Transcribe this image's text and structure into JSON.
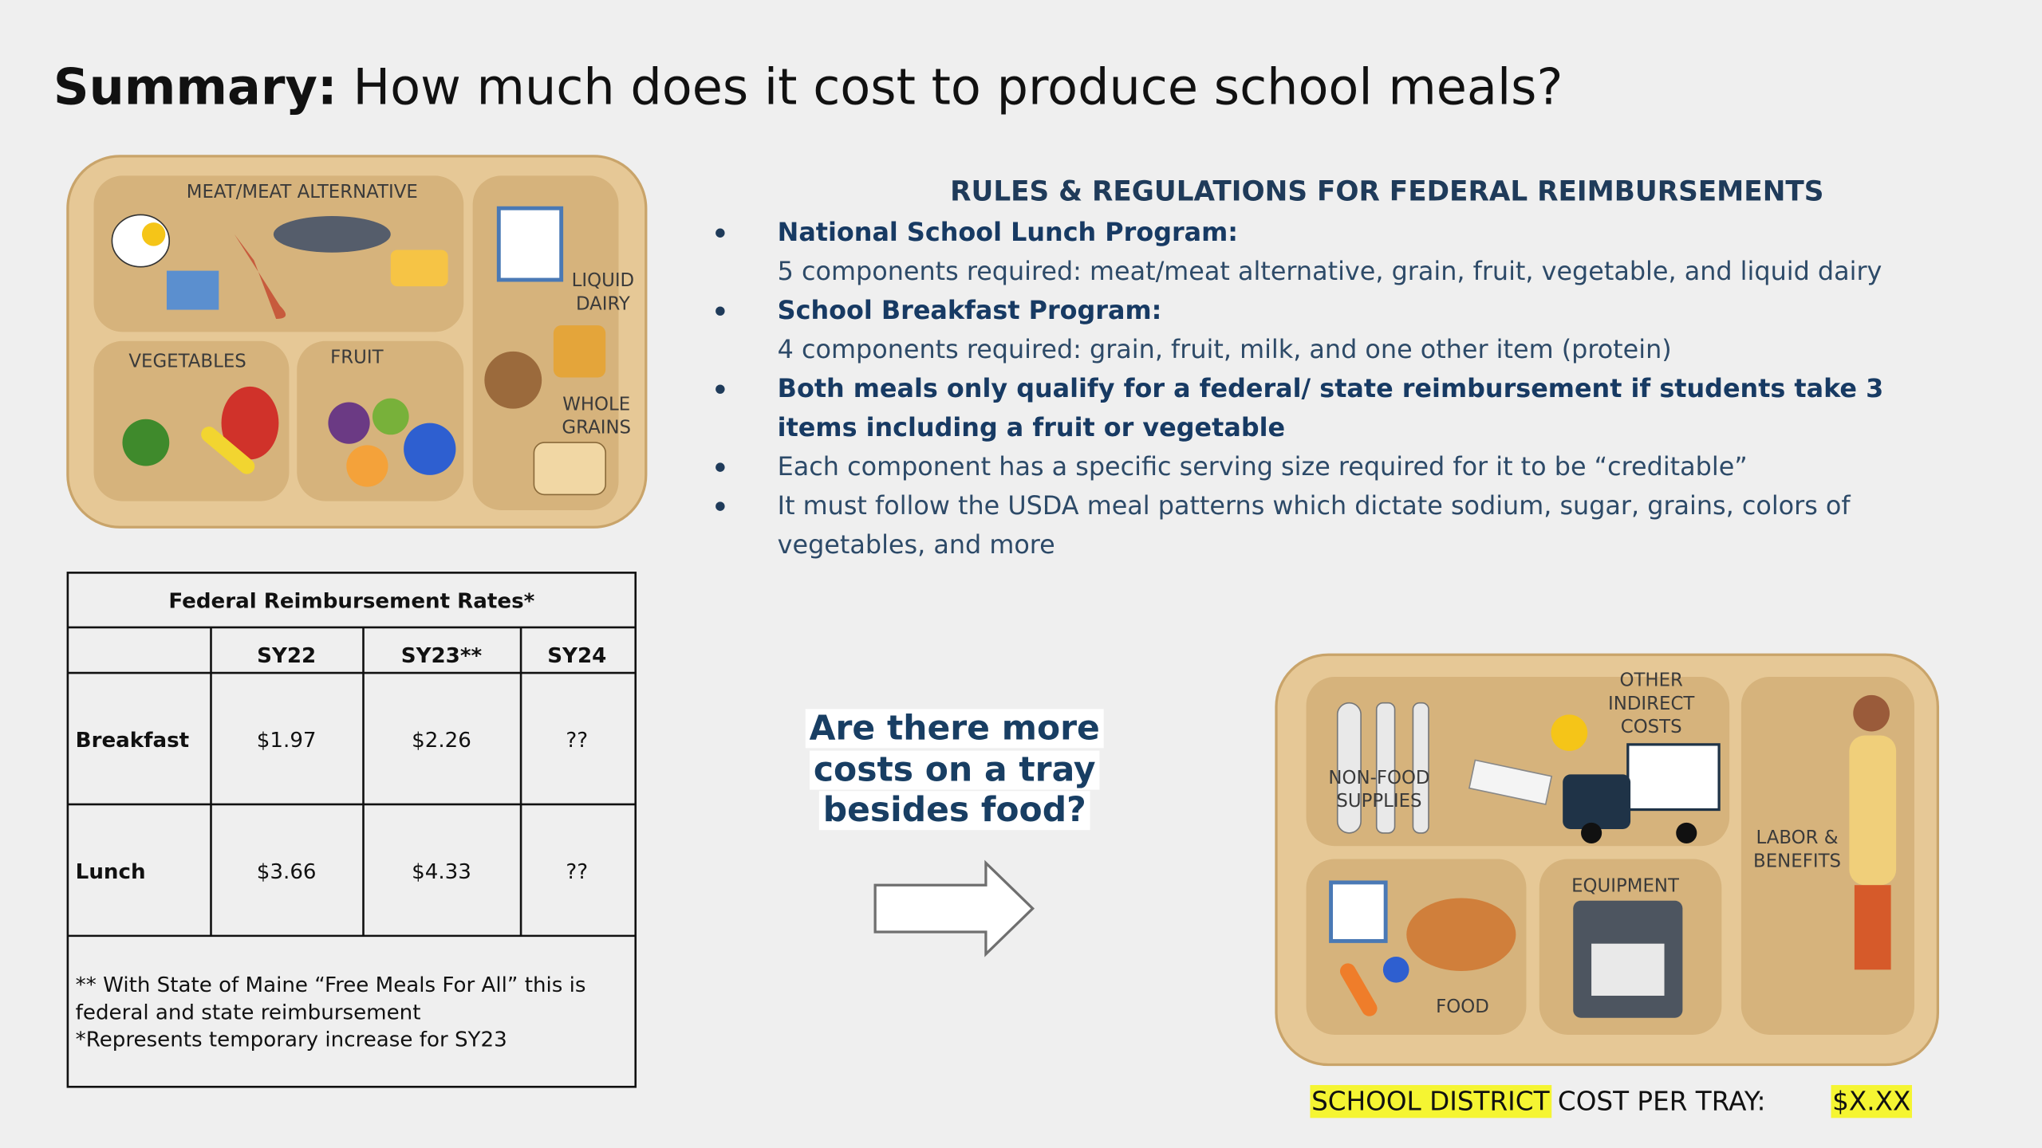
{
  "header": {
    "title_bold": "Summary:",
    "title_rest": " How much does it cost to produce school meals?"
  },
  "food_tray": {
    "meat": "MEAT/MEAT ALTERNATIVE",
    "liquid_dairy": [
      "LIQUID",
      "DAIRY"
    ],
    "vegetables": "VEGETABLES",
    "fruit": "FRUIT",
    "whole_grains": [
      "WHOLE",
      "GRAINS"
    ]
  },
  "rules": {
    "heading": "RULES & REGULATIONS FOR FEDERAL REIMBURSEMENTS",
    "items": [
      {
        "title": "National School Lunch Program:",
        "text": "5 components required: meat/meat alternative, grain, fruit, vegetable, and liquid dairy"
      },
      {
        "title": "School Breakfast Program:",
        "text": "4 components required: grain, fruit, milk, and one other item (protein)"
      },
      {
        "lines": [
          "Both meals only qualify for a federal/ state reimbursement if students take 3",
          "items including a fruit or vegetable"
        ]
      },
      {
        "lines": [
          "Each component has a specific serving size required for it to be “creditable”"
        ]
      },
      {
        "lines": [
          "It must follow the USDA meal patterns which dictate sodium, sugar, grains, colors of",
          "vegetables, and more"
        ]
      }
    ]
  },
  "table": {
    "title": "Federal Reimbursement Rates*",
    "headers": [
      "SY22",
      "SY23**",
      "SY24"
    ],
    "rows": [
      [
        "Breakfast",
        "$1.97",
        "$2.26",
        "??"
      ],
      [
        "Lunch",
        "$3.66",
        "$4.33",
        "??"
      ]
    ],
    "notes": [
      "** With State of Maine “Free Meals For All” this is",
      "federal and state reimbursement",
      "*Represents temporary increase for SY23"
    ]
  },
  "callout": {
    "lines": [
      "Are there more",
      "costs on a tray",
      "besides food?"
    ]
  },
  "cost_tray": {
    "other_indirect": [
      "OTHER",
      "INDIRECT",
      "COSTS"
    ],
    "non_food": [
      "NON-FOOD",
      "SUPPLIES"
    ],
    "labor": [
      "LABOR &",
      "BENEFITS"
    ],
    "equipment": "EQUIPMENT",
    "food": "FOOD"
  },
  "footer": {
    "highlight": "SCHOOL DISTRICT",
    "label": " COST PER TRAY:",
    "value": "$X.XX"
  }
}
